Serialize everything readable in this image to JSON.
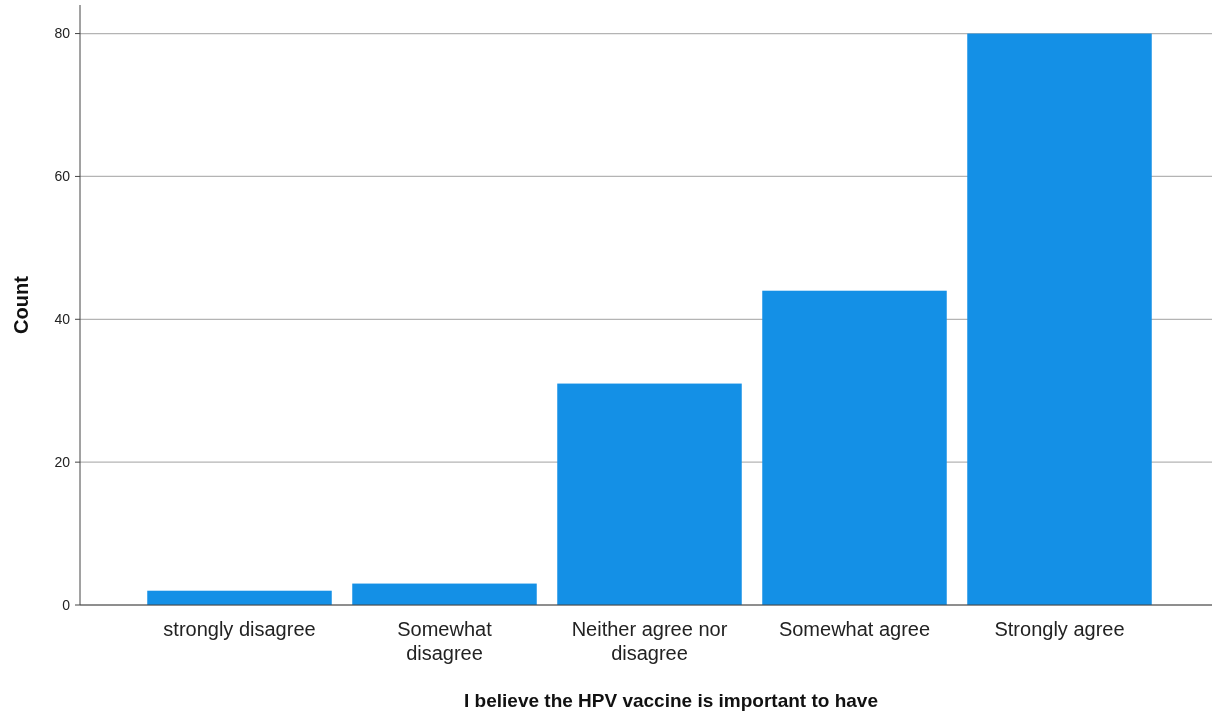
{
  "chart_data": {
    "type": "bar",
    "xlabel": "I believe the HPV vaccine is important to have",
    "ylabel": "Count",
    "categories": [
      "strongly disagree",
      "Somewhat disagree",
      "Neither agree nor disagree",
      "Somewhat agree",
      "Strongly agree"
    ],
    "values": [
      2,
      3,
      31,
      44,
      80
    ],
    "color": "#1490e6",
    "ylim": [
      0,
      84
    ],
    "yticks": [
      0,
      20,
      40,
      60,
      80
    ],
    "grid": "y"
  }
}
